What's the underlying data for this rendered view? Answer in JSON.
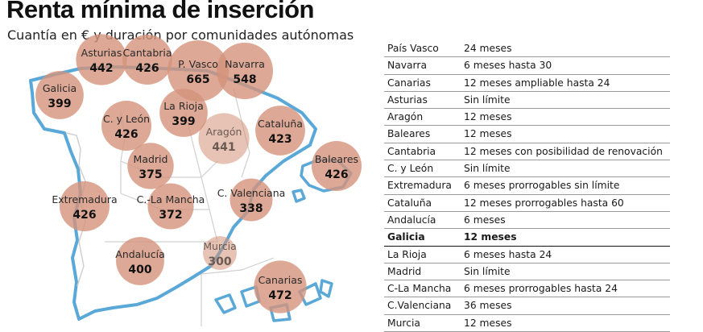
{
  "title": "Renta mínima de inserción",
  "subtitle": "Cuantía en € y duración por comunidades autónomas",
  "colors": {
    "bubble": "#d4927a",
    "outline": "#5aa8d8",
    "internal_border": "#d0d0d0"
  },
  "chart_data": [
    {
      "type": "bubble-map",
      "unit": "€",
      "regions": [
        {
          "name": "Asturias",
          "value": 442
        },
        {
          "name": "Cantabria",
          "value": 426
        },
        {
          "name": "P. Vasco",
          "value": 665
        },
        {
          "name": "Navarra",
          "value": 548
        },
        {
          "name": "Galicia",
          "value": 399
        },
        {
          "name": "La Rioja",
          "value": 399
        },
        {
          "name": "C. y León",
          "value": 426
        },
        {
          "name": "Aragón",
          "value": 441
        },
        {
          "name": "Cataluña",
          "value": 423
        },
        {
          "name": "Baleares",
          "value": 426
        },
        {
          "name": "Madrid",
          "value": 375
        },
        {
          "name": "Extremadura",
          "value": 426
        },
        {
          "name": "C.-La Mancha",
          "value": 372
        },
        {
          "name": "C. Valenciana",
          "value": 338
        },
        {
          "name": "Murcia",
          "value": 300
        },
        {
          "name": "Andalucía",
          "value": 400
        },
        {
          "name": "Canarias",
          "value": 472
        }
      ]
    },
    {
      "type": "table",
      "rows": [
        {
          "region": "País Vasco",
          "duration": "24 meses"
        },
        {
          "region": "Navarra",
          "duration": "6 meses hasta 30"
        },
        {
          "region": "Canarias",
          "duration": "12 meses ampliable hasta 24"
        },
        {
          "region": "Asturias",
          "duration": "Sin límite"
        },
        {
          "region": "Aragón",
          "duration": "12 meses"
        },
        {
          "region": "Baleares",
          "duration": "12 meses"
        },
        {
          "region": "Cantabria",
          "duration": "12 meses con posibilidad de renovación"
        },
        {
          "region": "C. y León",
          "duration": "Sin límite"
        },
        {
          "region": "Extremadura",
          "duration": "6 meses prorrogables sin límite"
        },
        {
          "region": "Cataluña",
          "duration": "12 meses prorrogables hasta 60"
        },
        {
          "region": "Andalucía",
          "duration": "6 meses"
        },
        {
          "region": "Galicia",
          "duration": "12 meses",
          "highlight": true
        },
        {
          "region": "La Rioja",
          "duration": "6 meses hasta 24"
        },
        {
          "region": "Madrid",
          "duration": "Sin límite"
        },
        {
          "region": "C-La Mancha",
          "duration": "6 meses prorrogables hasta 24"
        },
        {
          "region": "C.Valenciana",
          "duration": "36 meses"
        },
        {
          "region": "Murcia",
          "duration": "12 meses"
        }
      ]
    }
  ]
}
